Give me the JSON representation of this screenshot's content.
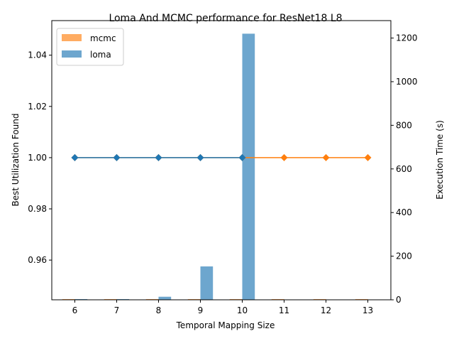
{
  "chart_data": {
    "type": "bar",
    "title": "Loma And MCMC performance for ResNet18 L8",
    "xlabel": "Temporal Mapping Size",
    "ylabel_left": "Best Utilization Found",
    "ylabel_right": "Execution Time (s)",
    "x": [
      6,
      7,
      8,
      9,
      10,
      11,
      12,
      13
    ],
    "xlim": [
      5.45,
      13.55
    ],
    "ylim_left": [
      0.9445,
      1.0535
    ],
    "yticks_left": [
      "0.96",
      "0.98",
      "1.00",
      "1.02",
      "1.04"
    ],
    "ylim_right": [
      0,
      1280
    ],
    "yticks_right": [
      "0",
      "200",
      "400",
      "600",
      "800",
      "1000",
      "1200"
    ],
    "legend": {
      "placement": "top-left",
      "entries": [
        "mcmc",
        "loma"
      ]
    },
    "bar_series": [
      {
        "name": "mcmc",
        "color": "#ff7f0e",
        "x": [
          6,
          7,
          8,
          9,
          10,
          11,
          12,
          13
        ],
        "values": [
          0.5,
          0.5,
          0.5,
          0.5,
          0.5,
          0.5,
          0.5,
          0.5
        ]
      },
      {
        "name": "loma",
        "color": "#1f77b4",
        "x": [
          6,
          7,
          8,
          9,
          10
        ],
        "values": [
          0.5,
          2,
          14,
          153,
          1220
        ]
      }
    ],
    "line_series": [
      {
        "name": "mcmc",
        "color": "#ff7f0e",
        "marker": "diamond",
        "x": [
          6,
          7,
          8,
          9,
          10,
          11,
          12,
          13
        ],
        "values": [
          1.0,
          1.0,
          1.0,
          1.0,
          1.0,
          1.0,
          1.0,
          1.0
        ]
      },
      {
        "name": "loma",
        "color": "#1f77b4",
        "marker": "diamond",
        "x": [
          6,
          7,
          8,
          9,
          10
        ],
        "values": [
          1.0,
          1.0,
          1.0,
          1.0,
          1.0
        ]
      }
    ]
  }
}
